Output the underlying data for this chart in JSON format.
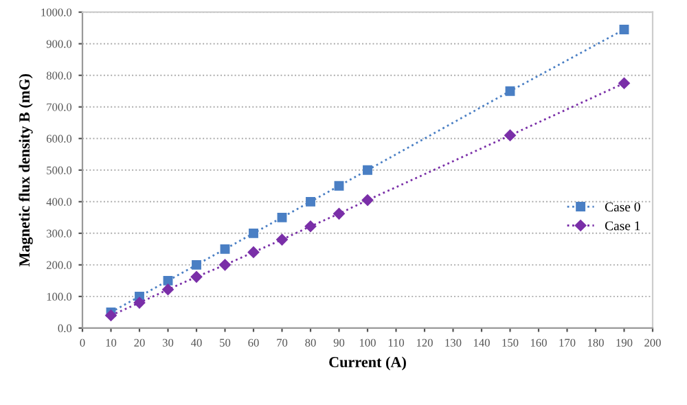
{
  "chart_data": {
    "type": "line",
    "xlabel": "Current (A)",
    "ylabel": "Magnetic flux density B (mG)",
    "x": [
      10,
      20,
      30,
      40,
      50,
      60,
      70,
      80,
      90,
      100,
      150,
      190
    ],
    "series": [
      {
        "name": "Case 0",
        "color": "#4a7fc4",
        "marker": "square",
        "values": [
          50,
          100,
          150,
          200,
          250,
          300,
          350,
          400,
          450,
          500,
          750,
          945
        ]
      },
      {
        "name": "Case 1",
        "color": "#7a2fa8",
        "marker": "diamond",
        "values": [
          40,
          80,
          122,
          162,
          200,
          240,
          280,
          322,
          362,
          405,
          610,
          775
        ]
      }
    ],
    "xlim": [
      0,
      200
    ],
    "xticks": [
      0,
      10,
      20,
      30,
      40,
      50,
      60,
      70,
      80,
      90,
      100,
      110,
      120,
      130,
      140,
      150,
      160,
      170,
      180,
      190,
      200
    ],
    "ylim": [
      0,
      1000
    ],
    "yticks": [
      {
        "value": 0,
        "label": "0.0"
      },
      {
        "value": 100,
        "label": "100.0"
      },
      {
        "value": 200,
        "label": "200.0"
      },
      {
        "value": 300,
        "label": "300.0"
      },
      {
        "value": 400,
        "label": "400.0"
      },
      {
        "value": 500,
        "label": "500.0"
      },
      {
        "value": 600,
        "label": "600.0"
      },
      {
        "value": 700,
        "label": "700.0"
      },
      {
        "value": 800,
        "label": "800.0"
      },
      {
        "value": 900,
        "label": "900.0"
      },
      {
        "value": 1000,
        "label": "1000.0"
      }
    ],
    "grid": "y",
    "legend": "right",
    "line_style": "dotted"
  }
}
